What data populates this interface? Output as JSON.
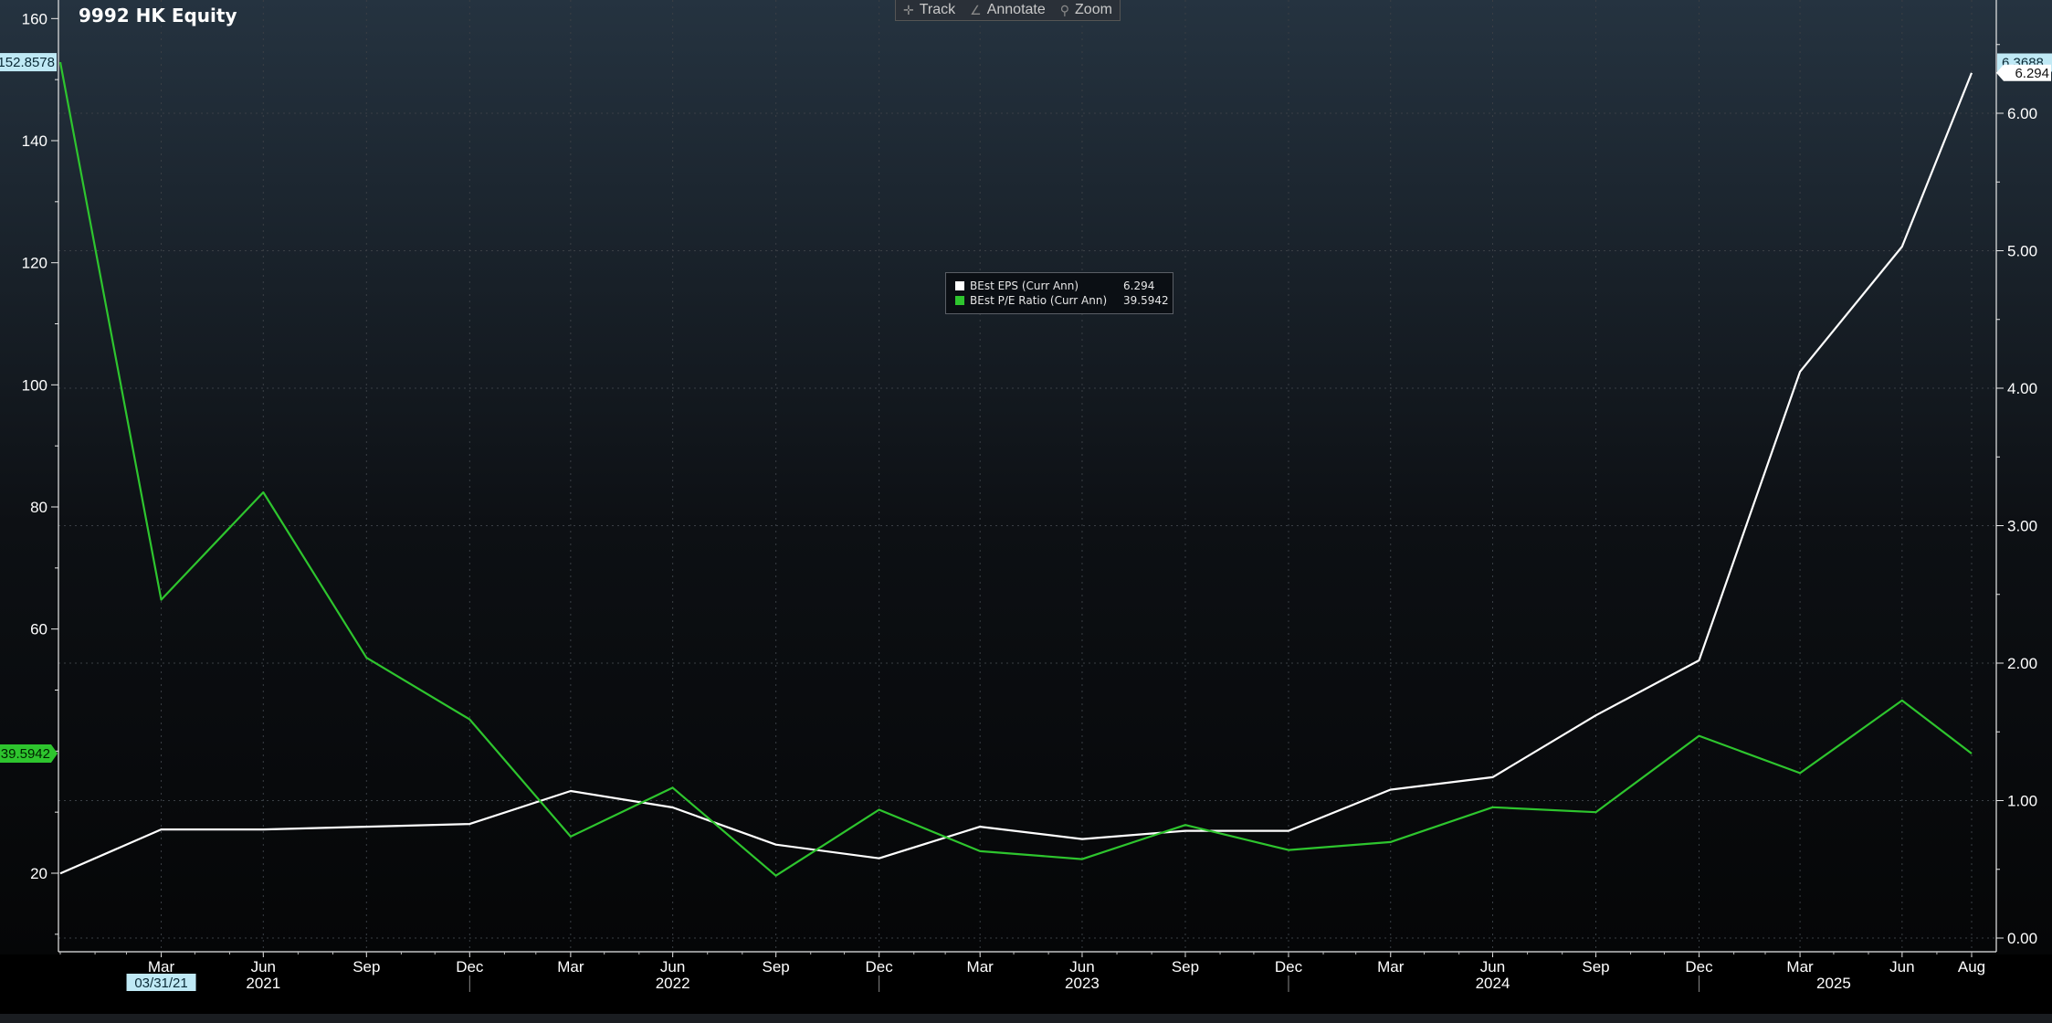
{
  "title": "9992 HK Equity",
  "toolbar": {
    "track": "Track",
    "annotate": "Annotate",
    "zoom": "Zoom",
    "track_icon": "crosshair-icon",
    "annotate_icon": "pencil-icon",
    "zoom_icon": "magnifier-icon"
  },
  "legend": {
    "eps_label": "BEst EPS (Curr Ann)",
    "eps_value": "6.294",
    "pe_label": "BEst P/E Ratio (Curr Ann)",
    "pe_value": "39.5942"
  },
  "colors": {
    "eps": "#ffffff",
    "pe": "#2ec52e",
    "left_highlight_bg": "#bfe9f5",
    "pe_tag_bg": "#2ec52e",
    "grid": "#3a3f45",
    "bg_top": "#253340",
    "bg_bottom": "#050607"
  },
  "chart_data": {
    "type": "line",
    "title": "9992 HK Equity",
    "x": [
      "2020-12-31",
      "2021-03-31",
      "2021-06-30",
      "2021-09-30",
      "2021-12-31",
      "2022-03-31",
      "2022-06-30",
      "2022-09-30",
      "2022-12-31",
      "2023-03-31",
      "2023-06-30",
      "2023-09-30",
      "2023-12-31",
      "2024-03-31",
      "2024-06-30",
      "2024-09-30",
      "2024-12-31",
      "2025-03-31",
      "2025-06-30",
      "2025-08-31"
    ],
    "series": [
      {
        "name": "BEst EPS (Curr Ann)",
        "axis": "right",
        "color": "#ffffff",
        "values": [
          0.47,
          0.79,
          0.79,
          0.81,
          0.83,
          1.07,
          0.95,
          0.68,
          0.58,
          0.81,
          0.72,
          0.78,
          0.78,
          1.08,
          1.17,
          1.62,
          2.02,
          4.12,
          5.03,
          6.294
        ]
      },
      {
        "name": "BEst P/E Ratio (Curr Ann)",
        "axis": "left",
        "color": "#2ec52e",
        "values": [
          152.8578,
          64.8,
          82.4,
          55.3,
          45.2,
          26.0,
          34.0,
          19.6,
          30.4,
          23.6,
          22.3,
          27.9,
          23.8,
          25.1,
          30.8,
          30.0,
          42.5,
          36.4,
          48.3,
          39.5942
        ]
      }
    ],
    "left_axis": {
      "range": [
        7.5,
        160
      ],
      "ticks": [
        20,
        60,
        80,
        100,
        120,
        140,
        160
      ],
      "last_value_label": "39.5942",
      "highlight_label": "152.8578"
    },
    "right_axis": {
      "range": [
        0,
        6.8
      ],
      "ticks": [
        "0.00",
        "1.00",
        "2.00",
        "3.00",
        "4.00",
        "5.00",
        "6.00"
      ],
      "highlight_label": "6.3688",
      "last_value_label": "6.294"
    },
    "x_axis": {
      "month_labels": [
        {
          "date": "2021-03-31",
          "label": "Mar"
        },
        {
          "date": "2021-06-30",
          "label": "Jun"
        },
        {
          "date": "2021-09-30",
          "label": "Sep"
        },
        {
          "date": "2021-12-31",
          "label": "Dec"
        },
        {
          "date": "2022-03-31",
          "label": "Mar"
        },
        {
          "date": "2022-06-30",
          "label": "Jun"
        },
        {
          "date": "2022-09-30",
          "label": "Sep"
        },
        {
          "date": "2022-12-31",
          "label": "Dec"
        },
        {
          "date": "2023-03-31",
          "label": "Mar"
        },
        {
          "date": "2023-06-30",
          "label": "Jun"
        },
        {
          "date": "2023-09-30",
          "label": "Sep"
        },
        {
          "date": "2023-12-31",
          "label": "Dec"
        },
        {
          "date": "2024-03-31",
          "label": "Mar"
        },
        {
          "date": "2024-06-30",
          "label": "Jun"
        },
        {
          "date": "2024-09-30",
          "label": "Sep"
        },
        {
          "date": "2024-12-31",
          "label": "Dec"
        },
        {
          "date": "2025-03-31",
          "label": "Mar"
        },
        {
          "date": "2025-06-30",
          "label": "Jun"
        },
        {
          "date": "2025-08-31",
          "label": "Aug"
        }
      ],
      "year_labels": [
        {
          "date": "2021-06-30",
          "label": "2021"
        },
        {
          "date": "2022-06-30",
          "label": "2022"
        },
        {
          "date": "2023-06-30",
          "label": "2023"
        },
        {
          "date": "2024-06-30",
          "label": "2024"
        },
        {
          "date": "2025-04-30",
          "label": "2025"
        }
      ],
      "year_dividers": [
        "2021-12-31",
        "2022-12-31",
        "2023-12-31",
        "2024-12-31"
      ],
      "cursor_date_label": "03/31/21",
      "cursor_date": "2021-03-31"
    },
    "grid": true,
    "legend_position": "center-top"
  }
}
